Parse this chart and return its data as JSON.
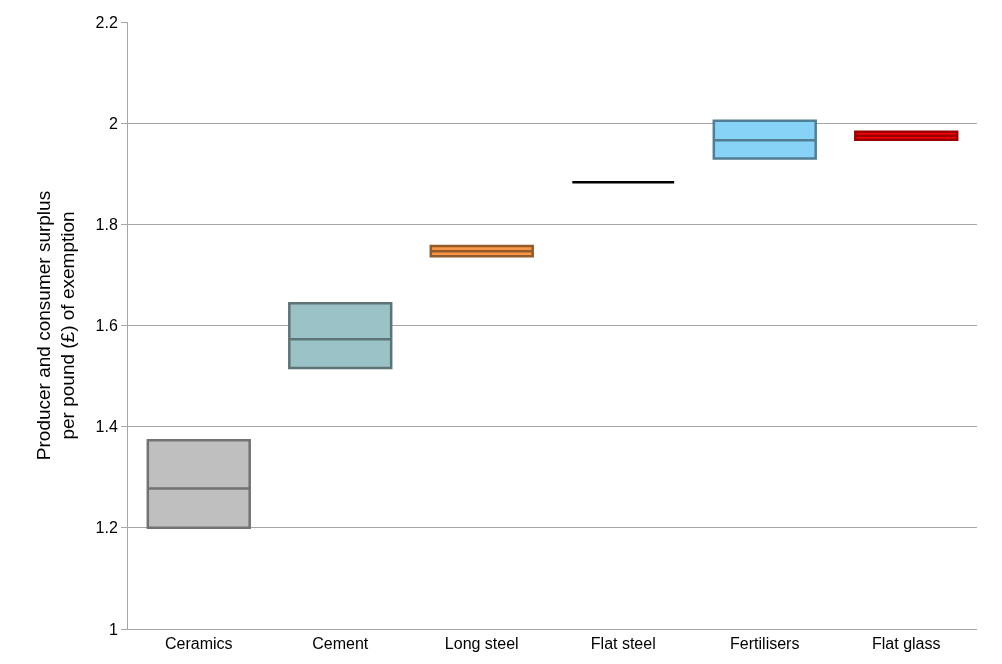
{
  "chart_data": {
    "type": "box",
    "ylabel": "Producer and consumer surplus\nper pound (£) of exemption",
    "categories": [
      "Ceramics",
      "Cement",
      "Long steel",
      "Flat steel",
      "Fertilisers",
      "Flat glass"
    ],
    "boxes": [
      {
        "low": 1.2,
        "q1": 1.2,
        "median": 1.278,
        "q3": 1.373,
        "high": 1.373
      },
      {
        "low": 1.516,
        "q1": 1.516,
        "median": 1.573,
        "q3": 1.644,
        "high": 1.644
      },
      {
        "low": 1.737,
        "q1": 1.737,
        "median": 1.747,
        "q3": 1.757,
        "high": 1.757
      },
      {
        "low": 1.883,
        "q1": 1.883,
        "median": 1.883,
        "q3": 1.883,
        "high": 1.883
      },
      {
        "low": 1.93,
        "q1": 1.93,
        "median": 1.966,
        "q3": 2.005,
        "high": 2.005
      },
      {
        "low": 1.967,
        "q1": 1.967,
        "median": 1.975,
        "q3": 1.983,
        "high": 1.983
      }
    ],
    "colors": [
      "#bfbfbf",
      "#9bc2c6",
      "#f79646",
      "#000000",
      "#87d3f8",
      "#ff0000"
    ],
    "ylim": [
      1,
      2.2
    ],
    "yticks": [
      1,
      1.2,
      1.4,
      1.6,
      1.8,
      2,
      2.2
    ],
    "grid": "y"
  }
}
